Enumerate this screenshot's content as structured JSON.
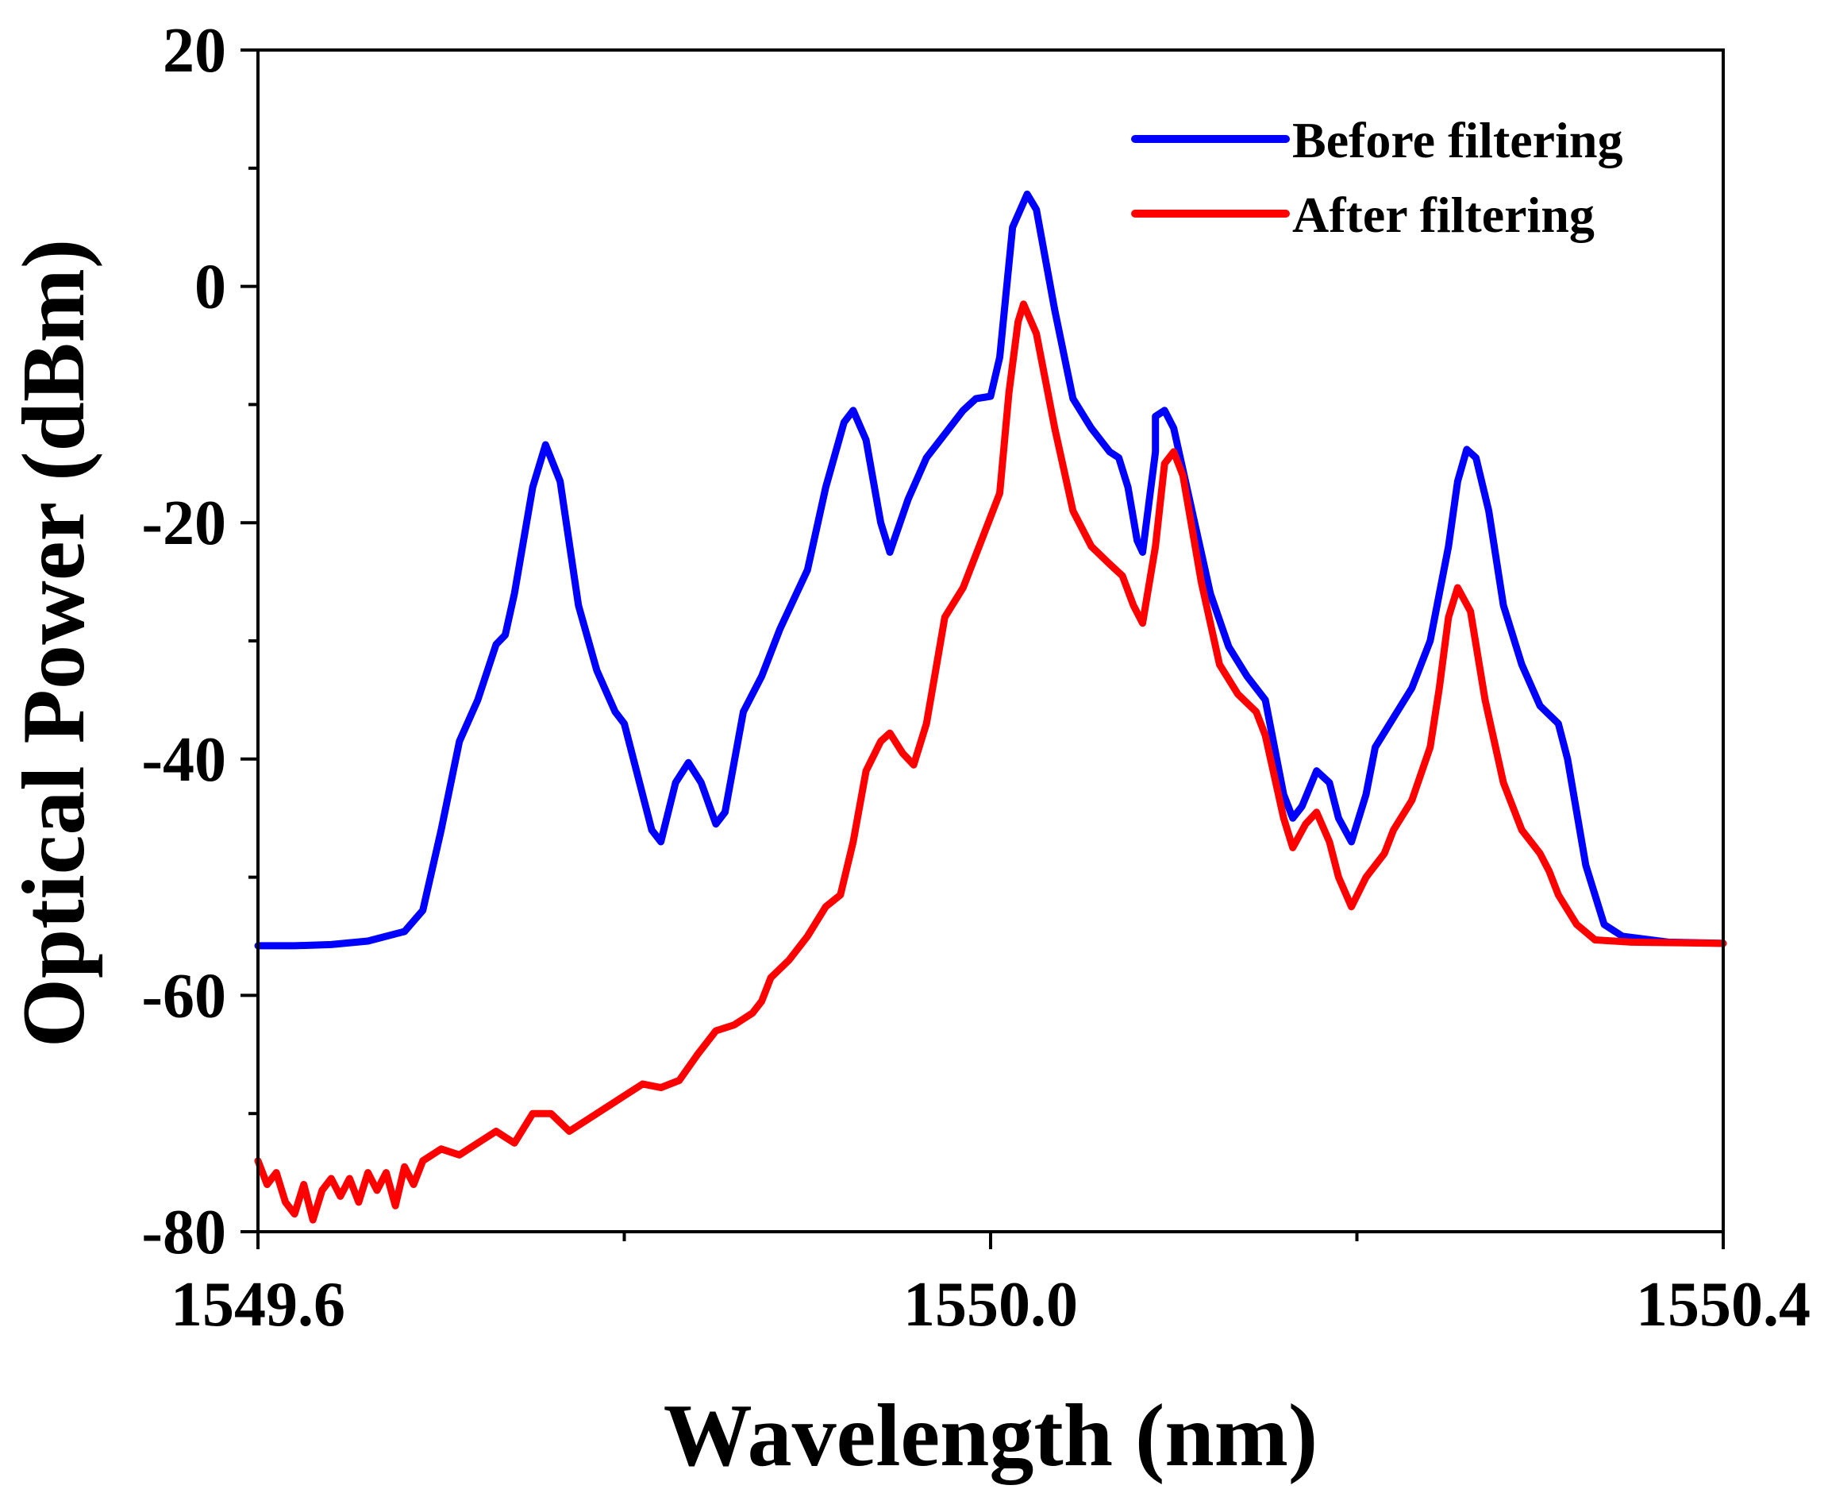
{
  "chart_data": {
    "type": "line",
    "title": "",
    "xlabel": "Wavelength (nm)",
    "ylabel": "Optical Power (dBm)",
    "xlim": [
      1549.6,
      1550.4
    ],
    "ylim": [
      -80,
      20
    ],
    "x_ticks": [
      1549.6,
      1550.0,
      1550.4
    ],
    "x_tick_labels": [
      "1549.6",
      "1550.0",
      "1550.4"
    ],
    "x_minor_ticks": [
      1549.8,
      1550.2
    ],
    "y_ticks": [
      -80,
      -60,
      -40,
      -20,
      0,
      20
    ],
    "y_tick_labels": [
      "-80",
      "-60",
      "-40",
      "-20",
      "0",
      "20"
    ],
    "y_minor_ticks": [
      -70,
      -50,
      -30,
      -10,
      10
    ],
    "legend_position": "top-right",
    "grid": false,
    "series": [
      {
        "name": "Before filtering",
        "color": "#0000ff",
        "points": [
          [
            1549.6,
            -55.8
          ],
          [
            1549.62,
            -55.8
          ],
          [
            1549.64,
            -55.7
          ],
          [
            1549.66,
            -55.4
          ],
          [
            1549.68,
            -54.6
          ],
          [
            1549.69,
            -52.8
          ],
          [
            1549.7,
            -46.0
          ],
          [
            1549.71,
            -38.5
          ],
          [
            1549.72,
            -35.0
          ],
          [
            1549.73,
            -30.3
          ],
          [
            1549.735,
            -29.5
          ],
          [
            1549.74,
            -26.0
          ],
          [
            1549.75,
            -17.0
          ],
          [
            1549.757,
            -13.4
          ],
          [
            1549.765,
            -16.5
          ],
          [
            1549.775,
            -27.0
          ],
          [
            1549.785,
            -32.5
          ],
          [
            1549.795,
            -36.0
          ],
          [
            1549.8,
            -37.0
          ],
          [
            1549.805,
            -40.0
          ],
          [
            1549.815,
            -46.0
          ],
          [
            1549.82,
            -47.0
          ],
          [
            1549.828,
            -42.0
          ],
          [
            1549.835,
            -40.3
          ],
          [
            1549.842,
            -42.0
          ],
          [
            1549.85,
            -45.5
          ],
          [
            1549.855,
            -44.5
          ],
          [
            1549.865,
            -36.0
          ],
          [
            1549.875,
            -33.0
          ],
          [
            1549.885,
            -29.0
          ],
          [
            1549.9,
            -24.0
          ],
          [
            1549.91,
            -17.0
          ],
          [
            1549.92,
            -11.5
          ],
          [
            1549.925,
            -10.5
          ],
          [
            1549.932,
            -13.0
          ],
          [
            1549.94,
            -20.0
          ],
          [
            1549.945,
            -22.5
          ],
          [
            1549.955,
            -18.0
          ],
          [
            1549.965,
            -14.5
          ],
          [
            1549.975,
            -12.5
          ],
          [
            1549.985,
            -10.5
          ],
          [
            1549.992,
            -9.5
          ],
          [
            1550.0,
            -9.3
          ],
          [
            1550.005,
            -6.0
          ],
          [
            1550.012,
            5.0
          ],
          [
            1550.02,
            7.8
          ],
          [
            1550.025,
            6.5
          ],
          [
            1550.035,
            -2.0
          ],
          [
            1550.045,
            -9.5
          ],
          [
            1550.055,
            -12.0
          ],
          [
            1550.065,
            -14.0
          ],
          [
            1550.07,
            -14.5
          ],
          [
            1550.075,
            -17.0
          ],
          [
            1550.08,
            -21.5
          ],
          [
            1550.083,
            -22.5
          ],
          [
            1550.09,
            -14.0
          ],
          [
            1550.09,
            -11.0
          ],
          [
            1550.095,
            -10.5
          ],
          [
            1550.1,
            -12.0
          ],
          [
            1550.11,
            -19.0
          ],
          [
            1550.12,
            -26.0
          ],
          [
            1550.13,
            -30.5
          ],
          [
            1550.14,
            -33.0
          ],
          [
            1550.15,
            -35.0
          ],
          [
            1550.16,
            -43.0
          ],
          [
            1550.165,
            -45.0
          ],
          [
            1550.17,
            -44.0
          ],
          [
            1550.178,
            -41.0
          ],
          [
            1550.185,
            -42.0
          ],
          [
            1550.19,
            -45.0
          ],
          [
            1550.197,
            -47.0
          ],
          [
            1550.205,
            -43.0
          ],
          [
            1550.21,
            -39.0
          ],
          [
            1550.22,
            -36.5
          ],
          [
            1550.23,
            -34.0
          ],
          [
            1550.24,
            -30.0
          ],
          [
            1550.25,
            -22.0
          ],
          [
            1550.255,
            -16.5
          ],
          [
            1550.26,
            -13.8
          ],
          [
            1550.265,
            -14.5
          ],
          [
            1550.272,
            -19.0
          ],
          [
            1550.28,
            -27.0
          ],
          [
            1550.29,
            -32.0
          ],
          [
            1550.3,
            -35.5
          ],
          [
            1550.31,
            -37.0
          ],
          [
            1550.315,
            -40.0
          ],
          [
            1550.325,
            -49.0
          ],
          [
            1550.335,
            -54.0
          ],
          [
            1550.345,
            -55.0
          ],
          [
            1550.37,
            -55.5
          ],
          [
            1550.4,
            -55.6
          ]
        ]
      },
      {
        "name": "After filtering",
        "color": "#ff0000",
        "points": [
          [
            1549.6,
            -74.0
          ],
          [
            1549.605,
            -76.0
          ],
          [
            1549.61,
            -75.0
          ],
          [
            1549.615,
            -77.5
          ],
          [
            1549.62,
            -78.5
          ],
          [
            1549.625,
            -76.0
          ],
          [
            1549.63,
            -79.0
          ],
          [
            1549.635,
            -76.5
          ],
          [
            1549.64,
            -75.5
          ],
          [
            1549.645,
            -77.0
          ],
          [
            1549.65,
            -75.5
          ],
          [
            1549.655,
            -77.5
          ],
          [
            1549.66,
            -75.0
          ],
          [
            1549.665,
            -76.5
          ],
          [
            1549.67,
            -75.0
          ],
          [
            1549.675,
            -77.8
          ],
          [
            1549.68,
            -74.5
          ],
          [
            1549.685,
            -76.0
          ],
          [
            1549.69,
            -74.0
          ],
          [
            1549.7,
            -73.0
          ],
          [
            1549.71,
            -73.5
          ],
          [
            1549.72,
            -72.5
          ],
          [
            1549.73,
            -71.5
          ],
          [
            1549.74,
            -72.5
          ],
          [
            1549.75,
            -70.0
          ],
          [
            1549.76,
            -70.0
          ],
          [
            1549.77,
            -71.5
          ],
          [
            1549.78,
            -70.5
          ],
          [
            1549.79,
            -69.5
          ],
          [
            1549.8,
            -68.5
          ],
          [
            1549.81,
            -67.5
          ],
          [
            1549.82,
            -67.8
          ],
          [
            1549.83,
            -67.2
          ],
          [
            1549.84,
            -65.0
          ],
          [
            1549.85,
            -63.0
          ],
          [
            1549.86,
            -62.5
          ],
          [
            1549.87,
            -61.5
          ],
          [
            1549.875,
            -60.5
          ],
          [
            1549.88,
            -58.5
          ],
          [
            1549.89,
            -57.0
          ],
          [
            1549.9,
            -55.0
          ],
          [
            1549.91,
            -52.5
          ],
          [
            1549.918,
            -51.5
          ],
          [
            1549.925,
            -47.0
          ],
          [
            1549.932,
            -41.0
          ],
          [
            1549.94,
            -38.5
          ],
          [
            1549.945,
            -37.8
          ],
          [
            1549.952,
            -39.5
          ],
          [
            1549.958,
            -40.5
          ],
          [
            1549.965,
            -37.0
          ],
          [
            1549.97,
            -32.5
          ],
          [
            1549.975,
            -28.0
          ],
          [
            1549.985,
            -25.5
          ],
          [
            1549.995,
            -21.5
          ],
          [
            1550.0,
            -19.5
          ],
          [
            1550.005,
            -17.5
          ],
          [
            1550.01,
            -9.0
          ],
          [
            1550.015,
            -3.0
          ],
          [
            1550.018,
            -1.5
          ],
          [
            1550.025,
            -4.0
          ],
          [
            1550.035,
            -12.0
          ],
          [
            1550.045,
            -19.0
          ],
          [
            1550.055,
            -22.0
          ],
          [
            1550.065,
            -23.5
          ],
          [
            1550.072,
            -24.5
          ],
          [
            1550.078,
            -27.0
          ],
          [
            1550.083,
            -28.5
          ],
          [
            1550.09,
            -22.0
          ],
          [
            1550.095,
            -15.0
          ],
          [
            1550.1,
            -14.0
          ],
          [
            1550.105,
            -16.0
          ],
          [
            1550.115,
            -25.0
          ],
          [
            1550.125,
            -32.0
          ],
          [
            1550.135,
            -34.5
          ],
          [
            1550.145,
            -36.0
          ],
          [
            1550.15,
            -38.0
          ],
          [
            1550.16,
            -45.0
          ],
          [
            1550.165,
            -47.5
          ],
          [
            1550.172,
            -45.5
          ],
          [
            1550.178,
            -44.5
          ],
          [
            1550.185,
            -47.0
          ],
          [
            1550.19,
            -50.0
          ],
          [
            1550.197,
            -52.5
          ],
          [
            1550.205,
            -50.0
          ],
          [
            1550.215,
            -48.0
          ],
          [
            1550.22,
            -46.0
          ],
          [
            1550.23,
            -43.5
          ],
          [
            1550.24,
            -39.0
          ],
          [
            1550.245,
            -34.0
          ],
          [
            1550.25,
            -28.0
          ],
          [
            1550.255,
            -25.5
          ],
          [
            1550.262,
            -27.5
          ],
          [
            1550.27,
            -35.0
          ],
          [
            1550.28,
            -42.0
          ],
          [
            1550.29,
            -46.0
          ],
          [
            1550.3,
            -48.0
          ],
          [
            1550.305,
            -49.5
          ],
          [
            1550.31,
            -51.5
          ],
          [
            1550.32,
            -54.0
          ],
          [
            1550.33,
            -55.3
          ],
          [
            1550.35,
            -55.5
          ],
          [
            1550.4,
            -55.6
          ]
        ]
      }
    ]
  }
}
